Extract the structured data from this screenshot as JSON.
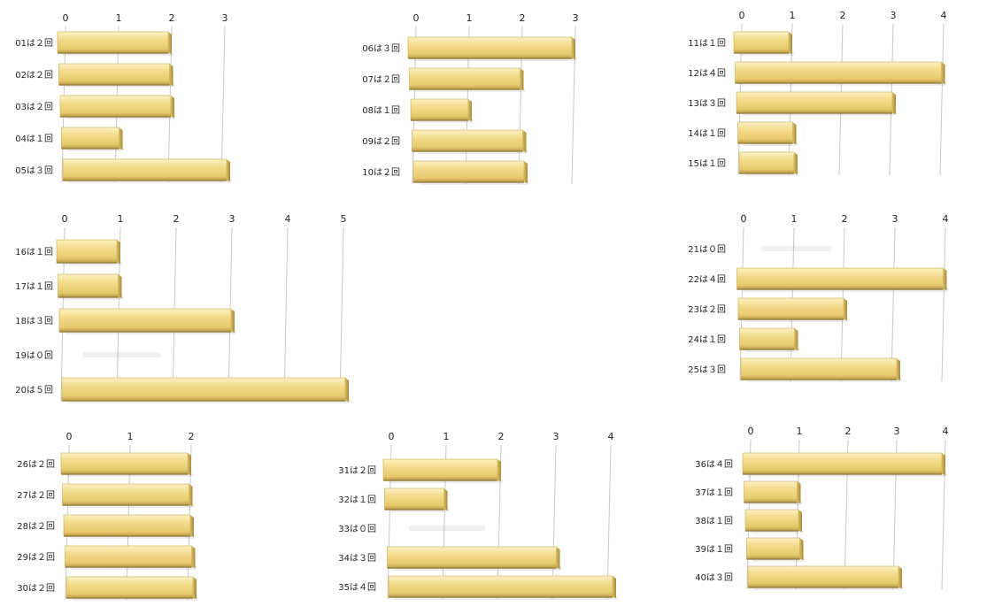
{
  "chart_data": [
    {
      "type": "bar",
      "title": "",
      "xlim": [
        0,
        3
      ],
      "ticks": [
        "0",
        "1",
        "2",
        "3"
      ],
      "categories": [
        "01は２回",
        "02は２回",
        "03は２回",
        "04は１回",
        "05は３回"
      ],
      "values": [
        2,
        2,
        2,
        1,
        3
      ]
    },
    {
      "type": "bar",
      "title": "",
      "xlim": [
        0,
        3
      ],
      "ticks": [
        "0",
        "1",
        "2",
        "3"
      ],
      "categories": [
        "06は３回",
        "07は２回",
        "08は１回",
        "09は２回",
        "10は２回"
      ],
      "values": [
        3,
        2,
        1,
        2,
        2
      ]
    },
    {
      "type": "bar",
      "title": "",
      "xlim": [
        0,
        4
      ],
      "ticks": [
        "0",
        "1",
        "2",
        "3",
        "4"
      ],
      "categories": [
        "11は１回",
        "12は４回",
        "13は３回",
        "14は１回",
        "15は１回"
      ],
      "values": [
        1,
        4,
        3,
        1,
        1
      ]
    },
    {
      "type": "bar",
      "title": "",
      "xlim": [
        0,
        5
      ],
      "ticks": [
        "0",
        "1",
        "2",
        "3",
        "4",
        "5"
      ],
      "categories": [
        "16は１回",
        "17は１回",
        "18は３回",
        "19は０回",
        "20は５回"
      ],
      "values": [
        1,
        1,
        3,
        0,
        5
      ]
    },
    {
      "type": "bar",
      "title": "",
      "xlim": [
        0,
        4
      ],
      "ticks": [
        "0",
        "1",
        "2",
        "3",
        "4"
      ],
      "categories": [
        "21は０回",
        "22は４回",
        "23は２回",
        "24は１回",
        "25は３回"
      ],
      "values": [
        0,
        4,
        2,
        1,
        3
      ]
    },
    {
      "type": "bar",
      "title": "",
      "xlim": [
        0,
        2
      ],
      "ticks": [
        "0",
        "1",
        "2"
      ],
      "categories": [
        "26は２回",
        "27は２回",
        "28は２回",
        "29は２回",
        "30は２回"
      ],
      "values": [
        2,
        2,
        2,
        2,
        2
      ]
    },
    {
      "type": "bar",
      "title": "",
      "xlim": [
        0,
        4
      ],
      "ticks": [
        "0",
        "1",
        "2",
        "3",
        "4"
      ],
      "categories": [
        "31は２回",
        "32は１回",
        "33は０回",
        "34は３回",
        "35は４回"
      ],
      "values": [
        2,
        1,
        0,
        3,
        4
      ]
    },
    {
      "type": "bar",
      "title": "",
      "xlim": [
        0,
        4
      ],
      "ticks": [
        "0",
        "1",
        "2",
        "3",
        "4"
      ],
      "categories": [
        "36は４回",
        "37は１回",
        "38は１回",
        "39は１回",
        "40は３回"
      ],
      "values": [
        4,
        1,
        1,
        1,
        3
      ]
    }
  ],
  "colors": {
    "bar_face": "#f3dc8c",
    "bar_edge": "#c9ab52",
    "bar_shadow": "#9a8444",
    "grid": "#c8c8c8"
  }
}
